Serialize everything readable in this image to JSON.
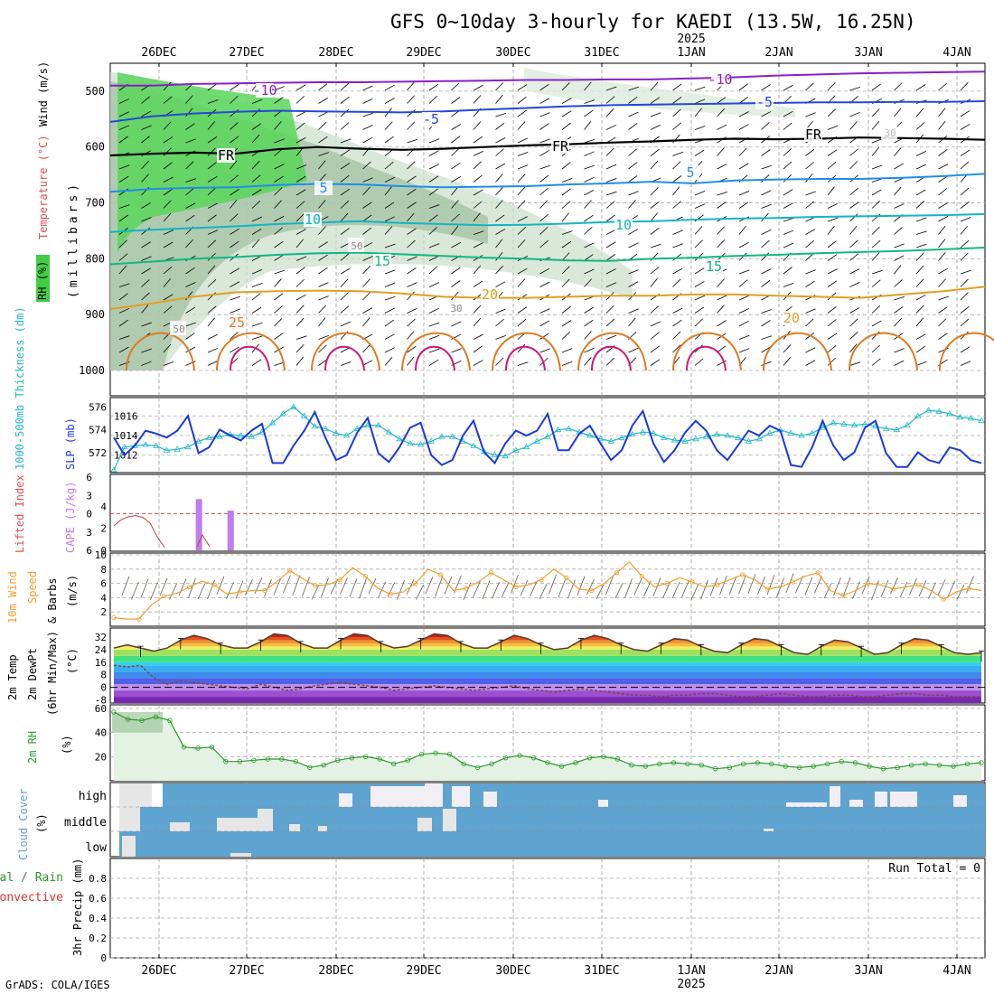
{
  "title": "GFS 0~10day 3-hourly for KAEDI (13.5W, 16.25N)",
  "footer": "GrADS: COLA/IGES",
  "run_total": "Run Total = 0",
  "chart_data": [
    {
      "panel": "upper-air",
      "type": "contour",
      "ylabel": [
        "RH (%)",
        "Temperature (°C)",
        "Wind (m/s)",
        "(millibars)"
      ],
      "yticks": [
        500,
        600,
        700,
        800,
        900,
        1000
      ],
      "ylim": [
        1000,
        450
      ],
      "x_dates": [
        "26DEC",
        "27DEC",
        "28DEC",
        "29DEC",
        "30DEC",
        "31DEC",
        "1JAN",
        "2JAN",
        "3JAN",
        "4JAN"
      ],
      "year_label": "2025",
      "temperature_contours": [
        {
          "label": "-10",
          "color": "#8a1fc8",
          "levels": [
            490,
            490,
            487,
            486,
            485,
            484,
            484,
            483,
            482,
            481,
            480,
            480,
            479,
            479,
            477,
            475,
            472,
            470,
            468,
            467,
            466,
            465
          ]
        },
        {
          "label": "-5",
          "color": "#2448d8",
          "levels": [
            555,
            545,
            540,
            537,
            535,
            536,
            537,
            538,
            536,
            533,
            530,
            527,
            525,
            524,
            523,
            522,
            521,
            520,
            520,
            519,
            519,
            518
          ]
        },
        {
          "label": "FR",
          "color": "#000000",
          "levels": [
            615,
            612,
            610,
            612,
            604,
            600,
            603,
            605,
            603,
            600,
            597,
            595,
            592,
            590,
            587,
            585,
            586,
            585,
            583,
            584,
            585,
            587
          ]
        },
        {
          "label": "5",
          "color": "#1f8ee8",
          "levels": [
            680,
            675,
            673,
            672,
            668,
            666,
            667,
            670,
            672,
            671,
            670,
            667,
            665,
            662,
            665,
            660,
            658,
            657,
            657,
            655,
            652,
            648
          ]
        },
        {
          "label": "10",
          "color": "#14b4c4",
          "levels": [
            752,
            748,
            745,
            742,
            738,
            735,
            733,
            736,
            738,
            740,
            739,
            737,
            734,
            733,
            730,
            728,
            727,
            725,
            724,
            723,
            722,
            720
          ]
        },
        {
          "label": "15",
          "color": "#10b880",
          "levels": [
            810,
            805,
            800,
            797,
            793,
            790,
            789,
            792,
            795,
            798,
            800,
            803,
            804,
            800,
            798,
            795,
            793,
            790,
            788,
            786,
            783,
            780
          ]
        },
        {
          "label": "20",
          "color": "#e0a020",
          "levels": [
            890,
            880,
            868,
            860,
            858,
            857,
            858,
            862,
            868,
            870,
            870,
            868,
            866,
            866,
            864,
            864,
            866,
            868,
            870,
            864,
            858,
            850
          ]
        }
      ],
      "contour_labels": [
        "-10",
        "-10",
        "-5",
        "-5",
        "FR",
        "FR",
        "FR",
        "5",
        "5",
        "10",
        "10",
        "15",
        "15",
        "20",
        "20",
        "25",
        "50",
        "30",
        "30",
        "50"
      ]
    },
    {
      "panel": "slp-thickness",
      "type": "line",
      "ylabel_left": "1000-500mb Thickness (dm)",
      "ylabel_right": "SLP (mb)",
      "yticks_left": [
        572,
        574,
        576
      ],
      "yticks_right": [
        1012,
        1014,
        1016
      ],
      "slp": [
        1013.8,
        1012.0,
        1013.0,
        1014.5,
        1014.2,
        1013.8,
        1014.5,
        1016.0,
        1012.2,
        1012.8,
        1014.6,
        1014.0,
        1013.5,
        1014.5,
        1015.2,
        1011.2,
        1011.2,
        1013.0,
        1014.5,
        1016.4,
        1013.8,
        1011.5,
        1012.0,
        1014.3,
        1015.8,
        1012.2,
        1011.3,
        1012.8,
        1014.8,
        1015.3,
        1012.0,
        1011.0,
        1011.5,
        1014.0,
        1015.5,
        1012.3,
        1011.2,
        1013.2,
        1014.5,
        1014.0,
        1014.5,
        1016.2,
        1012.5,
        1012.5,
        1014.2,
        1015.0,
        1013.2,
        1011.5,
        1012.5,
        1015.0,
        1016.5,
        1013.2,
        1011.3,
        1012.5,
        1014.3,
        1015.5,
        1014.5,
        1012.5,
        1011.5,
        1013.0,
        1014.5,
        1014.0,
        1015.0,
        1014.5,
        1011.0,
        1010.8,
        1012.8,
        1015.5,
        1013.0,
        1011.5,
        1012.3,
        1014.8,
        1015.5,
        1012.2,
        1010.8,
        1010.8,
        1012.3,
        1011.5,
        1011.2,
        1012.8,
        1012.5,
        1011.5,
        1011.2
      ],
      "thickness": [
        570.5,
        572.5,
        572.6,
        572.7,
        572.6,
        572.2,
        572.3,
        572.5,
        573.0,
        573.3,
        573.4,
        573.6,
        573.5,
        573.4,
        573.8,
        574.6,
        575.4,
        576.0,
        575.2,
        574.3,
        574.1,
        573.7,
        573.5,
        574.1,
        574.4,
        574.4,
        573.8,
        573.2,
        572.8,
        572.7,
        573.0,
        573.4,
        573.4,
        573.0,
        572.6,
        572.1,
        571.8,
        571.7,
        572.2,
        572.5,
        573.0,
        573.4,
        574.0,
        574.1,
        573.8,
        573.5,
        573.2,
        573.0,
        573.3,
        573.6,
        573.8,
        573.7,
        573.3,
        573.1,
        573.0,
        573.2,
        573.4,
        573.6,
        573.5,
        573.3,
        573.0,
        573.2,
        573.7,
        574.0,
        573.7,
        573.5,
        573.7,
        574.2,
        574.6,
        574.5,
        574.4,
        574.5,
        574.3,
        574.1,
        574.0,
        574.4,
        575.2,
        575.7,
        575.6,
        575.4,
        575.1,
        575.0,
        574.8
      ]
    },
    {
      "panel": "cape-li",
      "type": "bar",
      "ylabel_left": "Lifted Index",
      "ylabel_right": "CAPE (J/kg)",
      "yticks_left": [
        -6,
        -3,
        0,
        3,
        6
      ],
      "yticks_right": [
        0,
        2,
        4,
        6,
        10
      ],
      "cape_bars": [
        {
          "t": 8,
          "v": 4.0
        },
        {
          "t": 11,
          "v": 3.1
        }
      ],
      "lifted_index": [
        2.0,
        1.0,
        0.5,
        0.3,
        0.6,
        1.5,
        3.8,
        5.5
      ],
      "zero_line": 0
    },
    {
      "panel": "wind10m",
      "type": "line",
      "ylabel": "10m Wind Speed & Barbs (m/s)",
      "yticks": [
        2,
        4,
        6,
        8,
        10
      ],
      "ylim": [
        0,
        10
      ],
      "speed": [
        1.2,
        1.0,
        1.0,
        3.0,
        4.2,
        4.6,
        5.5,
        6.3,
        5.8,
        4.5,
        4.8,
        5.0,
        5.0,
        6.3,
        7.8,
        6.7,
        5.7,
        5.8,
        6.5,
        8.2,
        7.0,
        5.3,
        4.5,
        4.8,
        6.0,
        8.0,
        7.2,
        5.0,
        5.3,
        6.2,
        7.5,
        6.5,
        5.5,
        5.8,
        6.5,
        8.0,
        6.8,
        5.2,
        5.0,
        6.0,
        7.5,
        9.0,
        7.0,
        5.5,
        6.0,
        6.8,
        6.2,
        5.5,
        5.8,
        6.5,
        7.2,
        6.5,
        5.2,
        5.5,
        6.2,
        7.0,
        7.5,
        5.0,
        4.3,
        5.0,
        6.0,
        5.8,
        5.2,
        5.5,
        5.8,
        5.0,
        3.8,
        4.8,
        5.3,
        5.0
      ]
    },
    {
      "panel": "temp-dewpoint",
      "type": "area",
      "ylabel": "2m Temp 2m DewPt (6hr Min/Max) (°C)",
      "yticks": [
        -8,
        0,
        8,
        16,
        24,
        32
      ],
      "ylim": [
        -10,
        36
      ],
      "temperature": [
        25,
        27,
        25,
        23,
        25,
        30,
        33,
        31,
        27,
        25,
        25,
        29,
        34,
        33,
        28,
        25,
        25,
        30,
        34,
        33,
        28,
        25,
        26,
        30,
        34,
        33,
        28,
        25,
        25,
        29,
        33,
        31,
        27,
        24,
        25,
        30,
        33,
        31,
        27,
        24,
        23,
        27,
        31,
        30,
        26,
        23,
        22,
        27,
        31,
        30,
        26,
        22,
        21,
        26,
        30,
        29,
        25,
        21,
        22,
        27,
        31,
        30,
        26,
        22,
        21,
        22
      ],
      "dewpoint": [
        14,
        13,
        14,
        6,
        2,
        4,
        3,
        2,
        1,
        0,
        -1,
        2,
        0,
        -2,
        -1,
        1,
        2,
        3,
        2,
        1,
        0,
        -2,
        -1,
        0,
        1,
        0,
        -1,
        -2,
        -1,
        0,
        1,
        -1,
        -2,
        -3,
        -2,
        -1,
        -2,
        -3,
        -4,
        -5,
        -5,
        -6,
        -5,
        -5,
        -4,
        -4,
        -5,
        -6,
        -6,
        -5,
        -4,
        -5,
        -6,
        -6,
        -5,
        -5,
        -6,
        -6,
        -5,
        -4,
        -4,
        -5,
        -5,
        -6,
        -6,
        -6
      ],
      "freezing_line": 0
    },
    {
      "panel": "rh2m",
      "type": "area",
      "ylabel": "2m RH (%)",
      "yticks": [
        20,
        40,
        60
      ],
      "ylim": [
        0,
        60
      ],
      "rh": [
        57,
        51,
        50,
        53,
        50,
        28,
        27,
        28,
        16,
        16,
        17,
        18,
        18,
        16,
        11,
        13,
        17,
        19,
        20,
        18,
        14,
        17,
        22,
        23,
        22,
        14,
        11,
        14,
        19,
        21,
        19,
        15,
        12,
        15,
        19,
        20,
        18,
        13,
        12,
        14,
        15,
        14,
        13,
        10,
        11,
        14,
        15,
        14,
        12,
        11,
        12,
        14,
        16,
        15,
        12,
        10,
        11,
        13,
        14,
        13,
        12,
        14,
        15
      ]
    },
    {
      "panel": "cloud-cover",
      "type": "heatmap",
      "ylabel": "Cloud Cover (%)",
      "rows": [
        "high",
        "middle",
        "low"
      ],
      "background_color": "#5fa3d0",
      "clear_color": "#e6e6e6"
    },
    {
      "panel": "precip",
      "type": "bar",
      "ylabel": "3hr Precip (mm)",
      "legend_left": [
        "Total / Rain",
        "Convective"
      ],
      "yticks": [
        0,
        0.2,
        0.4,
        0.6,
        0.8
      ],
      "ylim": [
        0,
        1.0
      ],
      "values": [],
      "x_dates": [
        "26DEC",
        "27DEC",
        "28DEC",
        "29DEC",
        "30DEC",
        "31DEC",
        "1JAN",
        "2JAN",
        "3JAN",
        "4JAN"
      ],
      "year_label": "2025"
    }
  ]
}
